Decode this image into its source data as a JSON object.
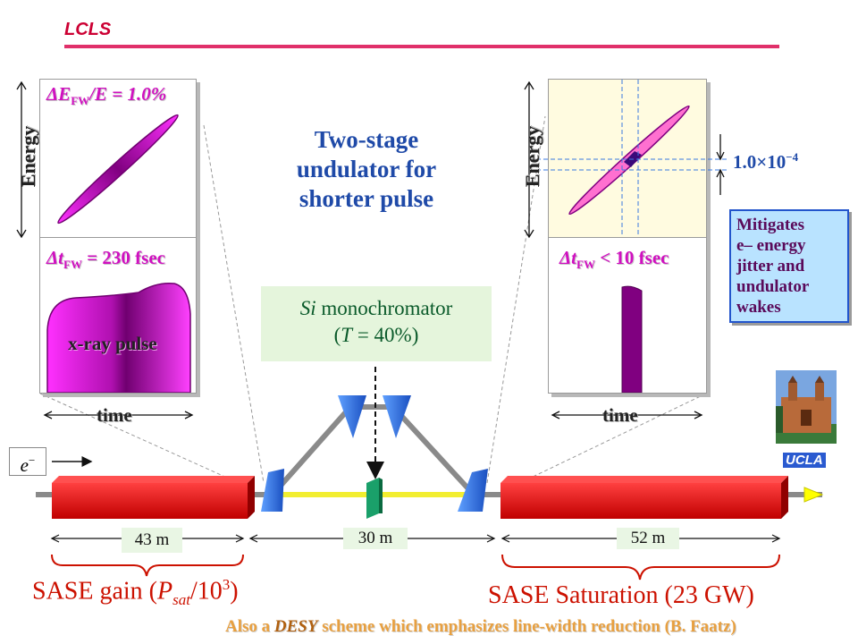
{
  "header": {
    "title": "LCLS"
  },
  "title": {
    "line1": "Two-stage",
    "line2": "undulator for",
    "line3": "shorter pulse"
  },
  "left_panel": {
    "energy_label": "Energy",
    "spread_label_delta": "ΔE",
    "spread_label_sub": "FW",
    "spread_label_rest": "/E = 1.0%",
    "duration_delta": "Δt",
    "duration_sub": "FW",
    "duration_rest": " = 230 fsec",
    "pulse_label": "x-ray pulse",
    "time_label": "time"
  },
  "right_panel": {
    "energy_label": "Energy",
    "duration_delta": "Δt",
    "duration_sub": "FW",
    "duration_rest": " < 10 fsec",
    "time_label": "time",
    "spread_mantissa": "1.0×10",
    "spread_exponent": "−4"
  },
  "monochromator": {
    "si": "Si",
    "rest": " monochromator",
    "line2_open": "(",
    "t": "T",
    "line2_rest": " = 40%)"
  },
  "callout": {
    "line1": "Mitigates",
    "line2": "e– energy",
    "line3": "jitter and",
    "line4": "undulator",
    "line5": "wakes"
  },
  "electron_label": {
    "base": "e",
    "superscript": "−"
  },
  "ucla_label": "UCLA",
  "lengths": {
    "first": "43 m",
    "chicane": "30 m",
    "second": "52 m"
  },
  "bottom": {
    "gain_prefix": "SASE gain (",
    "gain_p": "P",
    "gain_sub": "sat",
    "gain_mid": "/10",
    "gain_exp": "3",
    "gain_close": ")",
    "saturation": "SASE Saturation (23 GW)",
    "desy_prefix": "Also a ",
    "desy_word": "DESY",
    "desy_rest": " scheme which emphasizes line-width reduction (B. Faatz)"
  },
  "colors": {
    "accent": "#e0306a",
    "undulator_red": "#d00000",
    "magenta": "#e020e0",
    "purple": "#700070",
    "callout_bg": "#b9e3ff",
    "mono_bg": "#e5f5dc",
    "crystal": "#1a9a6a",
    "mirror_blue": "#2a6adf"
  }
}
